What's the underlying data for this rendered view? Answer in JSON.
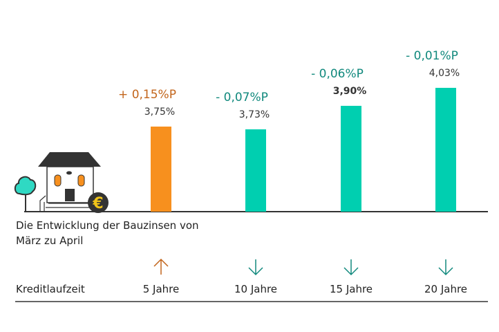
{
  "chart_data": {
    "type": "bar",
    "title": "Die Entwicklung der Bauzinsen von März zu April",
    "xlabel": "Kreditlaufzeit",
    "categories": [
      "5 Jahre",
      "10 Jahre",
      "15 Jahre",
      "20 Jahre"
    ],
    "values": [
      3.75,
      3.73,
      3.9,
      4.03
    ],
    "value_labels": [
      "3,75%",
      "3,73%",
      "3,90%",
      "4,03%"
    ],
    "changes": [
      "+ 0,15%P",
      "- 0,07%P",
      "- 0,06%P",
      "- 0,01%P"
    ],
    "directions": [
      "up",
      "down",
      "down",
      "down"
    ],
    "bar_colors": [
      "#f7901e",
      "#00cfb0",
      "#00cfb0",
      "#00cfb0"
    ],
    "change_colors": {
      "up": "#c2651c",
      "down": "#11897d"
    },
    "grid": false
  }
}
